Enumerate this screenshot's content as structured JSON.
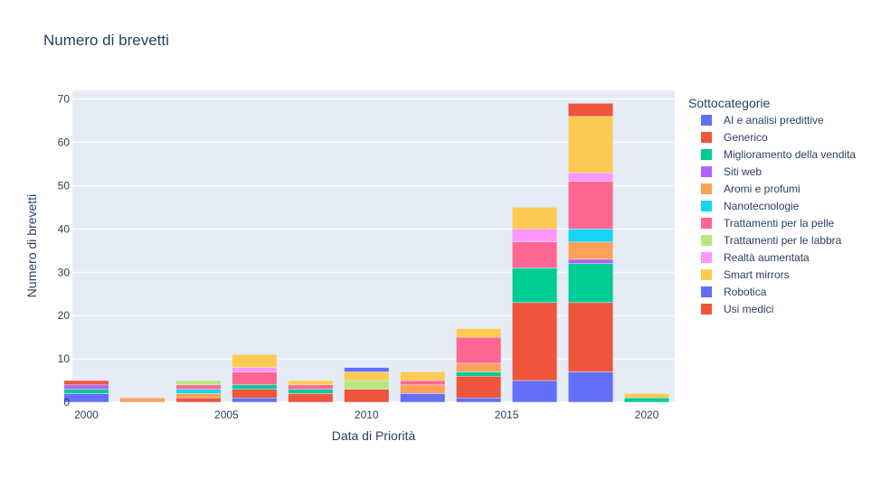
{
  "chart_data": {
    "type": "bar",
    "barmode": "stack",
    "title": "Numero di brevetti",
    "xlabel": "Data di Priorità",
    "ylabel": "Numero di brevetti",
    "ylim": [
      0,
      72
    ],
    "xlim": [
      1999.5,
      2021
    ],
    "xticks": [
      2000,
      2005,
      2010,
      2015,
      2020
    ],
    "yticks": [
      0,
      10,
      20,
      30,
      40,
      50,
      60,
      70
    ],
    "grid": true,
    "legend_title": "Sottocategorie",
    "legend_position": "right",
    "x": [
      2000,
      2002,
      2004,
      2006,
      2008,
      2010,
      2012,
      2014,
      2016,
      2018,
      2020
    ],
    "series": [
      {
        "name": "AI e analisi predittive",
        "color": "#636efa",
        "values": [
          2,
          0,
          0,
          1,
          0,
          0,
          2,
          1,
          5,
          7,
          0
        ]
      },
      {
        "name": "Generico",
        "color": "#EF553B",
        "values": [
          0,
          0,
          1,
          2,
          2,
          3,
          0,
          5,
          18,
          16,
          0
        ]
      },
      {
        "name": "Miglioramento della vendita",
        "color": "#00cc96",
        "values": [
          1,
          0,
          0,
          1,
          1,
          0,
          0,
          1,
          8,
          9,
          1
        ]
      },
      {
        "name": "Siti web",
        "color": "#ab63fa",
        "values": [
          1,
          0,
          0,
          0,
          0,
          0,
          0,
          0,
          0,
          1,
          0
        ]
      },
      {
        "name": "Aromi e profumi",
        "color": "#FFA15A",
        "values": [
          0,
          1,
          1,
          0,
          0,
          0,
          2,
          2,
          0,
          4,
          0
        ]
      },
      {
        "name": "Nanotecnologie",
        "color": "#19d3f3",
        "values": [
          0,
          0,
          1,
          0,
          0,
          0,
          0,
          0,
          0,
          3,
          0
        ]
      },
      {
        "name": "Trattamenti per la pelle",
        "color": "#FF6692",
        "values": [
          0,
          0,
          1,
          3,
          1,
          0,
          1,
          6,
          6,
          11,
          0
        ]
      },
      {
        "name": "Trattamenti per le labbra",
        "color": "#B6E880",
        "values": [
          0,
          0,
          1,
          0,
          0,
          2,
          0,
          0,
          0,
          0,
          0
        ]
      },
      {
        "name": "Realtà aumentata",
        "color": "#FF97FF",
        "values": [
          0,
          0,
          0,
          1,
          0,
          0,
          0,
          0,
          3,
          2,
          0
        ]
      },
      {
        "name": "Smart mirrors",
        "color": "#FECB52",
        "values": [
          0,
          0,
          0,
          3,
          1,
          2,
          2,
          2,
          5,
          13,
          1
        ]
      },
      {
        "name": "Robotica",
        "color": "#636efa",
        "values": [
          0,
          0,
          0,
          0,
          0,
          1,
          0,
          0,
          0,
          0,
          0
        ]
      },
      {
        "name": "Usi medici",
        "color": "#EF553B",
        "values": [
          1,
          0,
          0,
          0,
          0,
          0,
          0,
          0,
          0,
          3,
          0
        ]
      }
    ]
  }
}
